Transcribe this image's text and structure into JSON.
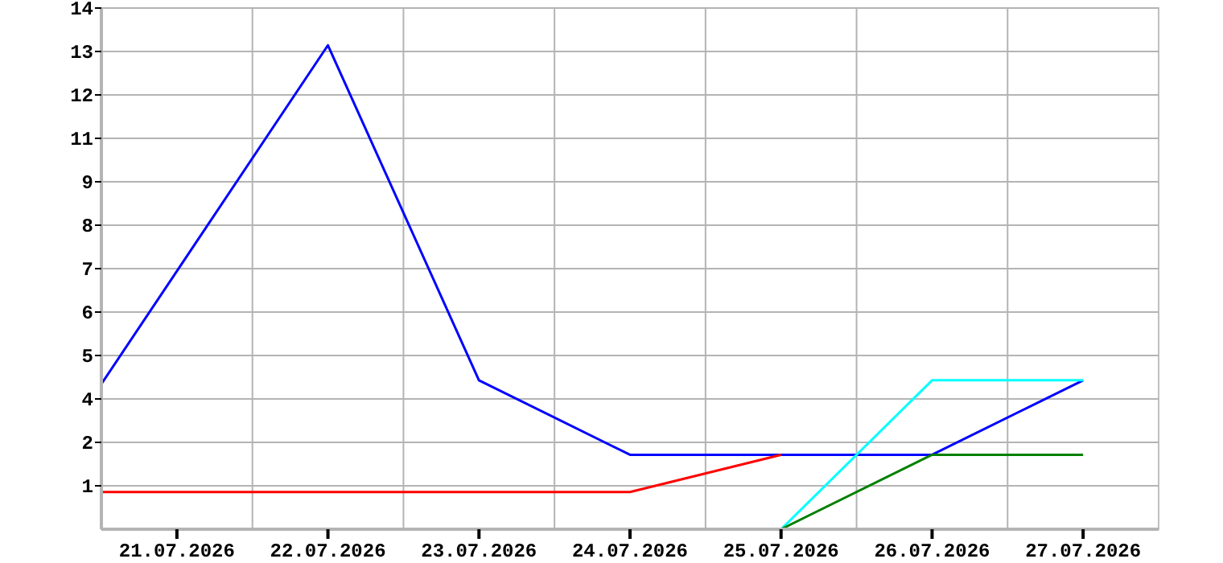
{
  "chart_data": {
    "type": "line",
    "xlim": [
      "2026-07-20T12:00",
      "2026-07-27T12:00"
    ],
    "xticks": [
      {
        "value": "2026-07-21",
        "label": "21.07.2026"
      },
      {
        "value": "2026-07-22",
        "label": "22.07.2026"
      },
      {
        "value": "2026-07-23",
        "label": "23.07.2026"
      },
      {
        "value": "2026-07-24",
        "label": "24.07.2026"
      },
      {
        "value": "2026-07-25",
        "label": "25.07.2026"
      },
      {
        "value": "2026-07-26",
        "label": "26.07.2026"
      },
      {
        "value": "2026-07-27",
        "label": "27.07.2026"
      }
    ],
    "ylim": [
      0,
      14
    ],
    "yticks": [
      {
        "value": 1.1667,
        "label": "1"
      },
      {
        "value": 2.3333,
        "label": "2"
      },
      {
        "value": 3.5,
        "label": "4"
      },
      {
        "value": 4.6667,
        "label": "5"
      },
      {
        "value": 5.8333,
        "label": "6"
      },
      {
        "value": 7,
        "label": "7"
      },
      {
        "value": 8.1667,
        "label": "8"
      },
      {
        "value": 9.3333,
        "label": "9"
      },
      {
        "value": 10.5,
        "label": "11"
      },
      {
        "value": 11.6667,
        "label": "12"
      },
      {
        "value": 12.8333,
        "label": "13"
      },
      14
    ],
    "grid": true,
    "marker": "none",
    "line_style": "solid",
    "series": [
      {
        "color": "#0000ff",
        "x": [
          "2026-07-20T12:00",
          "2026-07-22",
          "2026-07-23",
          "2026-07-24",
          "2026-07-25",
          "2026-07-26",
          "2026-07-27"
        ],
        "values": [
          3.9,
          13,
          4,
          2,
          2,
          2,
          4
        ]
      },
      {
        "color": "#ff0000",
        "x": [
          "2026-07-20T12:00",
          "2026-07-21",
          "2026-07-22",
          "2026-07-23",
          "2026-07-24",
          "2026-07-25"
        ],
        "values": [
          1,
          1,
          1,
          1,
          1,
          2
        ]
      },
      {
        "color": "#00ffff",
        "x": [
          "2026-07-25",
          "2026-07-26",
          "2026-07-27"
        ],
        "values": [
          0,
          4,
          4
        ]
      },
      {
        "color": "#008000",
        "x": [
          "2026-07-25",
          "2026-07-26",
          "2026-07-27"
        ],
        "values": [
          0,
          2,
          2
        ]
      }
    ]
  }
}
